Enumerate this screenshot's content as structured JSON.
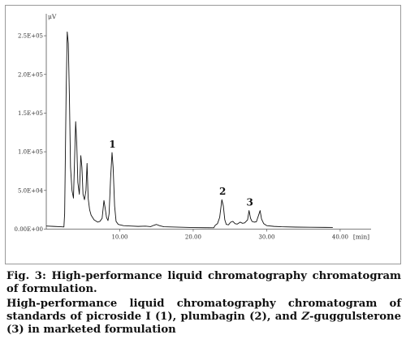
{
  "chart_data": {
    "type": "line",
    "x_unit": "[min]",
    "y_unit": "μV",
    "xlim": [
      0,
      42
    ],
    "ylim": [
      -10000,
      270000
    ],
    "x_ticks": [
      {
        "value": 10,
        "label": "10.00"
      },
      {
        "value": 20,
        "label": "20.00"
      },
      {
        "value": 30,
        "label": "30.00"
      },
      {
        "value": 40,
        "label": "40.00"
      }
    ],
    "y_ticks": [
      {
        "value": 0,
        "label": "0.00E+00"
      },
      {
        "value": 50000,
        "label": "5.0E+04"
      },
      {
        "value": 100000,
        "label": "1.0E+05"
      },
      {
        "value": 150000,
        "label": "1.5E+05"
      },
      {
        "value": 200000,
        "label": "2.0E+05"
      },
      {
        "value": 250000,
        "label": "2.5E+05"
      }
    ],
    "peak_labels": [
      {
        "label": "1",
        "x": 9.0,
        "y": 99000
      },
      {
        "label": "2",
        "x": 24.0,
        "y": 38000
      },
      {
        "label": "3",
        "x": 27.7,
        "y": 24000
      }
    ],
    "series": [
      {
        "color": "#111111",
        "points": [
          [
            0.0,
            4000
          ],
          [
            1.0,
            3500
          ],
          [
            2.0,
            3000
          ],
          [
            2.4,
            2800
          ],
          [
            2.5,
            20000
          ],
          [
            2.7,
            175000
          ],
          [
            2.85,
            255000
          ],
          [
            3.0,
            240000
          ],
          [
            3.15,
            170000
          ],
          [
            3.3,
            80000
          ],
          [
            3.5,
            50000
          ],
          [
            3.7,
            40000
          ],
          [
            3.85,
            90000
          ],
          [
            4.0,
            139000
          ],
          [
            4.15,
            110000
          ],
          [
            4.3,
            60000
          ],
          [
            4.5,
            45000
          ],
          [
            4.7,
            95000
          ],
          [
            4.85,
            80000
          ],
          [
            5.0,
            45000
          ],
          [
            5.2,
            38000
          ],
          [
            5.4,
            50000
          ],
          [
            5.55,
            85000
          ],
          [
            5.7,
            40000
          ],
          [
            5.9,
            25000
          ],
          [
            6.1,
            18000
          ],
          [
            6.5,
            12000
          ],
          [
            7.0,
            9000
          ],
          [
            7.3,
            10000
          ],
          [
            7.6,
            14000
          ],
          [
            7.85,
            37000
          ],
          [
            8.0,
            28000
          ],
          [
            8.2,
            15000
          ],
          [
            8.4,
            11000
          ],
          [
            8.55,
            20000
          ],
          [
            8.75,
            65000
          ],
          [
            8.95,
            99000
          ],
          [
            9.1,
            80000
          ],
          [
            9.3,
            30000
          ],
          [
            9.5,
            10000
          ],
          [
            9.8,
            6000
          ],
          [
            10.5,
            4500
          ],
          [
            11.5,
            4000
          ],
          [
            12.5,
            3500
          ],
          [
            13.5,
            3800
          ],
          [
            14.2,
            3200
          ],
          [
            14.6,
            4800
          ],
          [
            15.0,
            6000
          ],
          [
            15.4,
            4500
          ],
          [
            16.0,
            3000
          ],
          [
            18.0,
            2500
          ],
          [
            20.0,
            2000
          ],
          [
            22.0,
            1800
          ],
          [
            22.8,
            1700
          ],
          [
            23.0,
            5000
          ],
          [
            23.3,
            7000
          ],
          [
            23.6,
            15000
          ],
          [
            23.9,
            38000
          ],
          [
            24.1,
            30000
          ],
          [
            24.3,
            12000
          ],
          [
            24.5,
            6000
          ],
          [
            24.8,
            5500
          ],
          [
            25.1,
            9000
          ],
          [
            25.4,
            10000
          ],
          [
            25.7,
            7000
          ],
          [
            26.0,
            6500
          ],
          [
            26.4,
            9000
          ],
          [
            26.7,
            7500
          ],
          [
            27.0,
            8000
          ],
          [
            27.4,
            12000
          ],
          [
            27.6,
            24000
          ],
          [
            27.8,
            14000
          ],
          [
            28.0,
            10000
          ],
          [
            28.3,
            9000
          ],
          [
            28.6,
            9500
          ],
          [
            28.9,
            18000
          ],
          [
            29.1,
            24000
          ],
          [
            29.3,
            13000
          ],
          [
            29.6,
            7000
          ],
          [
            30.0,
            4500
          ],
          [
            31.0,
            3500
          ],
          [
            32.0,
            3000
          ],
          [
            34.0,
            2600
          ],
          [
            36.0,
            2400
          ],
          [
            38.0,
            2200
          ],
          [
            39.0,
            2100
          ]
        ]
      }
    ]
  },
  "caption": {
    "fig_label": "Fig. 3:",
    "line1": " High-performance liquid chromatography chromatogram of formulation.",
    "line2_a": "High-performance liquid chromatography chromatogram of standards of picroside I (1), plumbagin (2), and ",
    "line2_z": "Z",
    "line2_b": "-guggulsterone (3) in marketed formulation"
  }
}
